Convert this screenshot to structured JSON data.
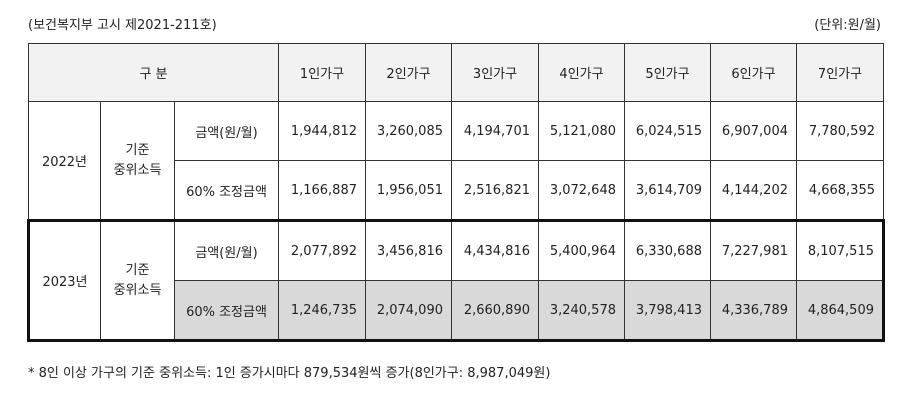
{
  "caption_left": "(보건복지부 고시 제2021-211호)",
  "caption_right": "(단위:원/월)",
  "table": {
    "header_label": "구 분",
    "columns": [
      "1인가구",
      "2인가구",
      "3인가구",
      "4인가구",
      "5인가구",
      "6인가구",
      "7인가구"
    ],
    "median_income_label": "기준\n중위소득",
    "row_label_amount": "금액(원/월)",
    "row_label_adjusted": "60% 조정금액",
    "years": [
      {
        "year": "2022년",
        "amount": [
          "1,944,812",
          "3,260,085",
          "4,194,701",
          "5,121,080",
          "6,024,515",
          "6,907,004",
          "7,780,592"
        ],
        "adjusted": [
          "1,166,887",
          "1,956,051",
          "2,516,821",
          "3,072,648",
          "3,614,709",
          "4,144,202",
          "4,668,355"
        ]
      },
      {
        "year": "2023년",
        "amount": [
          "2,077,892",
          "3,456,816",
          "4,434,816",
          "5,400,964",
          "6,330,688",
          "7,227,981",
          "8,107,515"
        ],
        "adjusted": [
          "1,246,735",
          "2,074,090",
          "2,660,890",
          "3,240,578",
          "3,798,413",
          "4,336,789",
          "4,864,509"
        ]
      }
    ]
  },
  "footnote": "* 8인 이상 가구의 기준 중위소득: 1인 증가시마다 879,534원씩 증가(8인가구: 8,987,049원)"
}
